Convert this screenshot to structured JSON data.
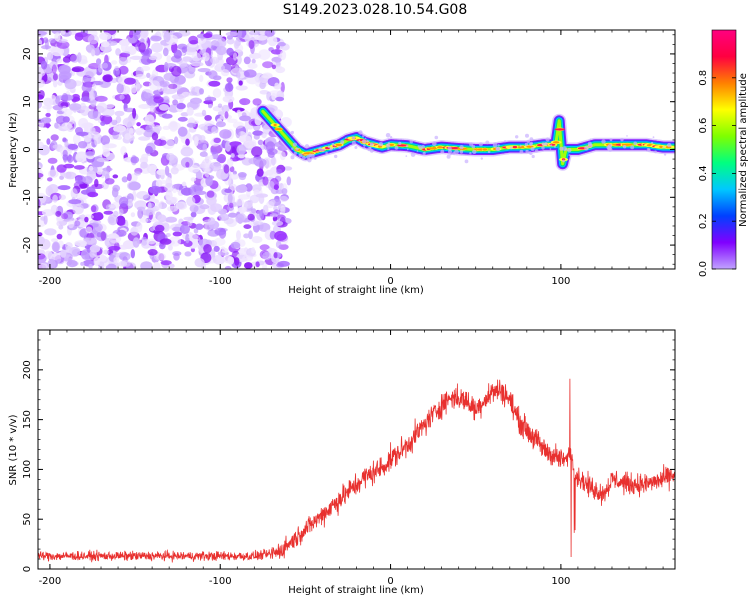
{
  "title": "S149.2023.028.10.54.G08",
  "colors": {
    "snr_line": "#e8302e",
    "scatter": "#9a33ff"
  },
  "chart_data": [
    {
      "type": "heatmap",
      "title": "",
      "xlabel": "Height of straight line (km)",
      "ylabel": "Frequency (Hz)",
      "xlim": [
        -207,
        167
      ],
      "ylim": [
        -25,
        25
      ],
      "x_ticks": [
        -200,
        -100,
        0,
        100
      ],
      "y_ticks": [
        -20,
        -10,
        0,
        10,
        20
      ],
      "noise_region_x": [
        -207,
        -65
      ],
      "ridge": {
        "x": [
          -75,
          -70,
          -65,
          -60,
          -55,
          -50,
          -45,
          -40,
          -35,
          -30,
          -25,
          -20,
          -15,
          -10,
          -5,
          0,
          10,
          20,
          30,
          40,
          50,
          60,
          70,
          80,
          90,
          97,
          99,
          101,
          103,
          110,
          120,
          130,
          140,
          150,
          160,
          167
        ],
        "y": [
          8,
          6,
          4,
          2,
          0,
          -1,
          -0.5,
          0,
          0.5,
          1,
          2,
          2.5,
          1.5,
          1,
          0.5,
          1,
          0.8,
          0,
          0.5,
          0.2,
          0,
          0,
          0.5,
          0.5,
          1,
          1,
          6,
          -3,
          0,
          0,
          1,
          1,
          1,
          1,
          0.5,
          0.5
        ]
      },
      "colorbar": {
        "label": "Normalized spectral amplitude",
        "range": [
          0,
          1
        ],
        "ticks": [
          "0.0",
          "0.2",
          "0.4",
          "0.6",
          "0.8"
        ],
        "tick_values": [
          0.0,
          0.2,
          0.4,
          0.6,
          0.8
        ],
        "colormap": [
          "#c1a4ff",
          "#8000ff",
          "#0040ff",
          "#00c8ff",
          "#00ff80",
          "#7fff00",
          "#ffff00",
          "#ff8000",
          "#ff0040",
          "#ff0080"
        ]
      }
    },
    {
      "type": "line",
      "title": "",
      "xlabel": "Height of straight line (km)",
      "ylabel": "SNR (10 * v/v)",
      "xlim": [
        -207,
        167
      ],
      "ylim": [
        0,
        240
      ],
      "x_ticks": [
        -200,
        -100,
        0,
        100
      ],
      "y_ticks": [
        0,
        50,
        100,
        150,
        200
      ],
      "series": [
        {
          "x": [
            -207,
            -190,
            -170,
            -150,
            -130,
            -110,
            -90,
            -80,
            -70,
            -65,
            -60,
            -55,
            -50,
            -45,
            -40,
            -35,
            -30,
            -25,
            -20,
            -15,
            -10,
            -5,
            0,
            5,
            10,
            15,
            20,
            25,
            30,
            35,
            40,
            45,
            50,
            55,
            60,
            65,
            70,
            75,
            80,
            85,
            90,
            95,
            100,
            104,
            106,
            108,
            112,
            115,
            120,
            125,
            130,
            140,
            150,
            160,
            167
          ],
          "y": [
            13,
            13,
            13,
            13,
            13,
            13,
            13,
            13,
            15,
            18,
            25,
            32,
            40,
            47,
            55,
            62,
            70,
            77,
            85,
            92,
            97,
            102,
            110,
            117,
            125,
            135,
            145,
            155,
            165,
            172,
            172,
            168,
            160,
            170,
            178,
            180,
            170,
            150,
            140,
            130,
            120,
            115,
            110,
            110,
            120,
            95,
            90,
            85,
            80,
            75,
            90,
            85,
            85,
            90,
            95
          ]
        }
      ]
    }
  ]
}
